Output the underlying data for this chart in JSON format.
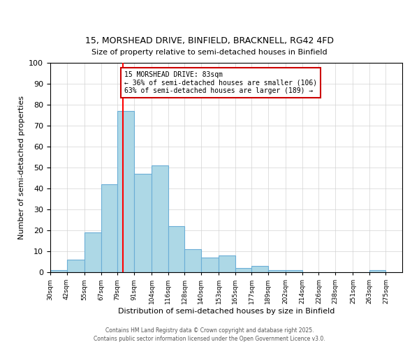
{
  "title": "15, MORSHEAD DRIVE, BINFIELD, BRACKNELL, RG42 4FD",
  "subtitle": "Size of property relative to semi-detached houses in Binfield",
  "xlabel": "Distribution of semi-detached houses by size in Binfield",
  "ylabel": "Number of semi-detached properties",
  "bin_labels": [
    "30sqm",
    "42sqm",
    "55sqm",
    "67sqm",
    "79sqm",
    "91sqm",
    "104sqm",
    "116sqm",
    "128sqm",
    "140sqm",
    "153sqm",
    "165sqm",
    "177sqm",
    "189sqm",
    "202sqm",
    "214sqm",
    "226sqm",
    "238sqm",
    "251sqm",
    "263sqm",
    "275sqm"
  ],
  "bin_edges": [
    30,
    42,
    55,
    67,
    79,
    91,
    104,
    116,
    128,
    140,
    153,
    165,
    177,
    189,
    202,
    214,
    226,
    238,
    251,
    263,
    275
  ],
  "counts": [
    1,
    6,
    19,
    42,
    77,
    47,
    51,
    22,
    11,
    7,
    8,
    2,
    3,
    1,
    1,
    0,
    0,
    0,
    0,
    1,
    0
  ],
  "bar_color": "#add8e6",
  "bar_edge_color": "#6baed6",
  "red_line_x": 83,
  "annotation_title": "15 MORSHEAD DRIVE: 83sqm",
  "annotation_line1": "← 36% of semi-detached houses are smaller (106)",
  "annotation_line2": "63% of semi-detached houses are larger (189) →",
  "annotation_box_color": "#ffffff",
  "annotation_box_edge": "#cc0000",
  "ylim": [
    0,
    100
  ],
  "yticks": [
    0,
    10,
    20,
    30,
    40,
    50,
    60,
    70,
    80,
    90,
    100
  ],
  "footer1": "Contains HM Land Registry data © Crown copyright and database right 2025.",
  "footer2": "Contains public sector information licensed under the Open Government Licence v3.0."
}
